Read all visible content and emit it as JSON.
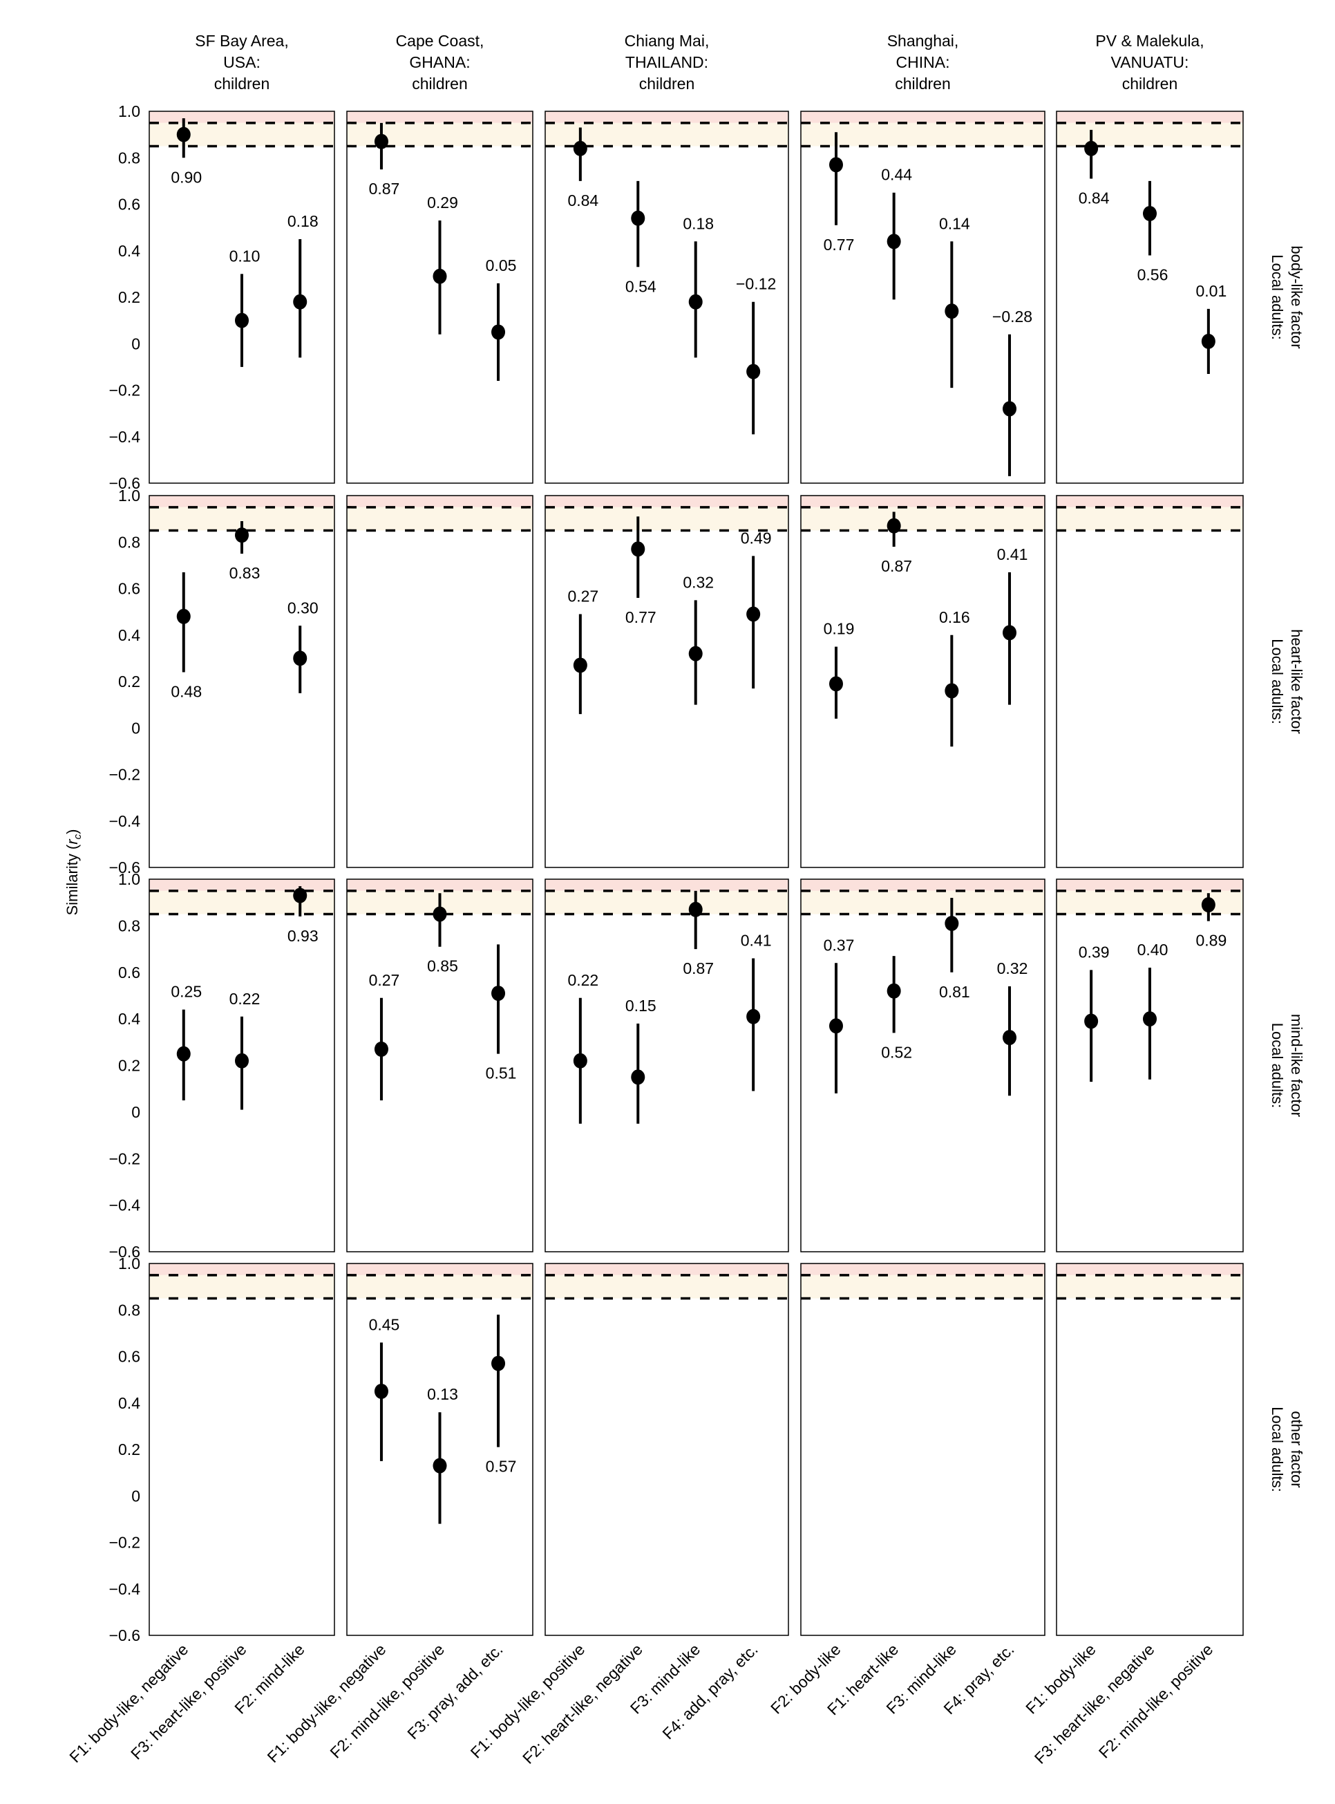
{
  "chart_data": {
    "type": "scatter",
    "subtype": "point-with-error-bars, faceted grid",
    "ylabel": "Similarity (r_c)",
    "ylim": [
      -0.6,
      1.0
    ],
    "yticks": [
      1.0,
      0.8,
      0.6,
      0.4,
      0.2,
      0,
      -0.2,
      -0.4,
      -0.6
    ],
    "ytick_labels": [
      "1.0",
      "0.8",
      "0.6",
      "0.4",
      "0.2",
      "0",
      "−0.2",
      "−0.4",
      "−0.6"
    ],
    "reference_lines": [
      0.95,
      0.85
    ],
    "bands": [
      {
        "from": 0.95,
        "to": 1.0,
        "color": "#fbe1dc"
      },
      {
        "from": 0.85,
        "to": 0.95,
        "color": "#fdf6e7"
      }
    ],
    "columns": [
      {
        "title": [
          "SF Bay Area,",
          "USA:",
          "children"
        ],
        "categories": [
          "F1: body-like, negative",
          "F3: heart-like, positive",
          "F2: mind-like"
        ]
      },
      {
        "title": [
          "Cape Coast,",
          "GHANA:",
          "children"
        ],
        "categories": [
          "F1: body-like, negative",
          "F2: mind-like, positive",
          "F3: pray, add, etc."
        ]
      },
      {
        "title": [
          "Chiang Mai,",
          "THAILAND:",
          "children"
        ],
        "categories": [
          "F1: body-like, positive",
          "F2: heart-like, negative",
          "F3: mind-like",
          "F4: add, pray, etc."
        ]
      },
      {
        "title": [
          "Shanghai,",
          "CHINA:",
          "children"
        ],
        "categories": [
          "F2: body-like",
          "F1: heart-like",
          "F3: mind-like",
          "F4: pray, etc."
        ]
      },
      {
        "title": [
          "PV & Malekula,",
          "VANUATU:",
          "children"
        ],
        "categories": [
          "F1: body-like",
          "F3: heart-like, negative",
          "F2: mind-like, positive"
        ]
      }
    ],
    "rows": [
      {
        "label": [
          "Local adults:",
          "body-like factor"
        ]
      },
      {
        "label": [
          "Local adults:",
          "heart-like factor"
        ]
      },
      {
        "label": [
          "Local adults:",
          "mind-like factor"
        ]
      },
      {
        "label": [
          "Local adults:",
          "other factor"
        ]
      }
    ],
    "points": [
      {
        "row": 0,
        "col": 0,
        "idx": 0,
        "value": 0.9,
        "lo": 0.8,
        "hi": 0.97,
        "label": "0.90",
        "label_pos": "below"
      },
      {
        "row": 0,
        "col": 0,
        "idx": 1,
        "value": 0.1,
        "lo": -0.1,
        "hi": 0.3,
        "label": "0.10",
        "label_pos": "above"
      },
      {
        "row": 0,
        "col": 0,
        "idx": 2,
        "value": 0.18,
        "lo": -0.06,
        "hi": 0.45,
        "label": "0.18",
        "label_pos": "above"
      },
      {
        "row": 0,
        "col": 1,
        "idx": 0,
        "value": 0.87,
        "lo": 0.75,
        "hi": 0.95,
        "label": "0.87",
        "label_pos": "below"
      },
      {
        "row": 0,
        "col": 1,
        "idx": 1,
        "value": 0.29,
        "lo": 0.04,
        "hi": 0.53,
        "label": "0.29",
        "label_pos": "above"
      },
      {
        "row": 0,
        "col": 1,
        "idx": 2,
        "value": 0.05,
        "lo": -0.16,
        "hi": 0.26,
        "label": "0.05",
        "label_pos": "above"
      },
      {
        "row": 0,
        "col": 2,
        "idx": 0,
        "value": 0.84,
        "lo": 0.7,
        "hi": 0.93,
        "label": "0.84",
        "label_pos": "below"
      },
      {
        "row": 0,
        "col": 2,
        "idx": 1,
        "value": 0.54,
        "lo": 0.33,
        "hi": 0.7,
        "label": "0.54",
        "label_pos": "below"
      },
      {
        "row": 0,
        "col": 2,
        "idx": 2,
        "value": 0.18,
        "lo": -0.06,
        "hi": 0.44,
        "label": "0.18",
        "label_pos": "above"
      },
      {
        "row": 0,
        "col": 2,
        "idx": 3,
        "value": -0.12,
        "lo": -0.39,
        "hi": 0.18,
        "label": "−0.12",
        "label_pos": "above"
      },
      {
        "row": 0,
        "col": 3,
        "idx": 0,
        "value": 0.77,
        "lo": 0.51,
        "hi": 0.91,
        "label": "0.77",
        "label_pos": "below"
      },
      {
        "row": 0,
        "col": 3,
        "idx": 1,
        "value": 0.44,
        "lo": 0.19,
        "hi": 0.65,
        "label": "0.44",
        "label_pos": "above"
      },
      {
        "row": 0,
        "col": 3,
        "idx": 2,
        "value": 0.14,
        "lo": -0.19,
        "hi": 0.44,
        "label": "0.14",
        "label_pos": "above"
      },
      {
        "row": 0,
        "col": 3,
        "idx": 3,
        "value": -0.28,
        "lo": -0.57,
        "hi": 0.04,
        "label": "−0.28",
        "label_pos": "above"
      },
      {
        "row": 0,
        "col": 4,
        "idx": 0,
        "value": 0.84,
        "lo": 0.71,
        "hi": 0.92,
        "label": "0.84",
        "label_pos": "below"
      },
      {
        "row": 0,
        "col": 4,
        "idx": 1,
        "value": 0.56,
        "lo": 0.38,
        "hi": 0.7,
        "label": "0.56",
        "label_pos": "below"
      },
      {
        "row": 0,
        "col": 4,
        "idx": 2,
        "value": 0.01,
        "lo": -0.13,
        "hi": 0.15,
        "label": "0.01",
        "label_pos": "above"
      },
      {
        "row": 1,
        "col": 0,
        "idx": 0,
        "value": 0.48,
        "lo": 0.24,
        "hi": 0.67,
        "label": "0.48",
        "label_pos": "below"
      },
      {
        "row": 1,
        "col": 0,
        "idx": 1,
        "value": 0.83,
        "lo": 0.75,
        "hi": 0.89,
        "label": "0.83",
        "label_pos": "below"
      },
      {
        "row": 1,
        "col": 0,
        "idx": 2,
        "value": 0.3,
        "lo": 0.15,
        "hi": 0.44,
        "label": "0.30",
        "label_pos": "above"
      },
      {
        "row": 1,
        "col": 2,
        "idx": 0,
        "value": 0.27,
        "lo": 0.06,
        "hi": 0.49,
        "label": "0.27",
        "label_pos": "above"
      },
      {
        "row": 1,
        "col": 2,
        "idx": 1,
        "value": 0.77,
        "lo": 0.56,
        "hi": 0.91,
        "label": "0.77",
        "label_pos": "below"
      },
      {
        "row": 1,
        "col": 2,
        "idx": 2,
        "value": 0.32,
        "lo": 0.1,
        "hi": 0.55,
        "label": "0.32",
        "label_pos": "above"
      },
      {
        "row": 1,
        "col": 2,
        "idx": 3,
        "value": 0.49,
        "lo": 0.17,
        "hi": 0.74,
        "label": "0.49",
        "label_pos": "above"
      },
      {
        "row": 1,
        "col": 3,
        "idx": 0,
        "value": 0.19,
        "lo": 0.04,
        "hi": 0.35,
        "label": "0.19",
        "label_pos": "above"
      },
      {
        "row": 1,
        "col": 3,
        "idx": 1,
        "value": 0.87,
        "lo": 0.78,
        "hi": 0.93,
        "label": "0.87",
        "label_pos": "below"
      },
      {
        "row": 1,
        "col": 3,
        "idx": 2,
        "value": 0.16,
        "lo": -0.08,
        "hi": 0.4,
        "label": "0.16",
        "label_pos": "above"
      },
      {
        "row": 1,
        "col": 3,
        "idx": 3,
        "value": 0.41,
        "lo": 0.1,
        "hi": 0.67,
        "label": "0.41",
        "label_pos": "above"
      },
      {
        "row": 2,
        "col": 0,
        "idx": 0,
        "value": 0.25,
        "lo": 0.05,
        "hi": 0.44,
        "label": "0.25",
        "label_pos": "above"
      },
      {
        "row": 2,
        "col": 0,
        "idx": 1,
        "value": 0.22,
        "lo": 0.01,
        "hi": 0.41,
        "label": "0.22",
        "label_pos": "above"
      },
      {
        "row": 2,
        "col": 0,
        "idx": 2,
        "value": 0.93,
        "lo": 0.84,
        "hi": 0.97,
        "label": "0.93",
        "label_pos": "below"
      },
      {
        "row": 2,
        "col": 1,
        "idx": 0,
        "value": 0.27,
        "lo": 0.05,
        "hi": 0.49,
        "label": "0.27",
        "label_pos": "above"
      },
      {
        "row": 2,
        "col": 1,
        "idx": 1,
        "value": 0.85,
        "lo": 0.71,
        "hi": 0.94,
        "label": "0.85",
        "label_pos": "below"
      },
      {
        "row": 2,
        "col": 1,
        "idx": 2,
        "value": 0.51,
        "lo": 0.25,
        "hi": 0.72,
        "label": "0.51",
        "label_pos": "below"
      },
      {
        "row": 2,
        "col": 2,
        "idx": 0,
        "value": 0.22,
        "lo": -0.05,
        "hi": 0.49,
        "label": "0.22",
        "label_pos": "above"
      },
      {
        "row": 2,
        "col": 2,
        "idx": 1,
        "value": 0.15,
        "lo": -0.05,
        "hi": 0.38,
        "label": "0.15",
        "label_pos": "above"
      },
      {
        "row": 2,
        "col": 2,
        "idx": 2,
        "value": 0.87,
        "lo": 0.7,
        "hi": 0.95,
        "label": "0.87",
        "label_pos": "below"
      },
      {
        "row": 2,
        "col": 2,
        "idx": 3,
        "value": 0.41,
        "lo": 0.09,
        "hi": 0.66,
        "label": "0.41",
        "label_pos": "above"
      },
      {
        "row": 2,
        "col": 3,
        "idx": 0,
        "value": 0.37,
        "lo": 0.08,
        "hi": 0.64,
        "label": "0.37",
        "label_pos": "above"
      },
      {
        "row": 2,
        "col": 3,
        "idx": 1,
        "value": 0.52,
        "lo": 0.34,
        "hi": 0.67,
        "label": "0.52",
        "label_pos": "below"
      },
      {
        "row": 2,
        "col": 3,
        "idx": 2,
        "value": 0.81,
        "lo": 0.6,
        "hi": 0.92,
        "label": "0.81",
        "label_pos": "below"
      },
      {
        "row": 2,
        "col": 3,
        "idx": 3,
        "value": 0.32,
        "lo": 0.07,
        "hi": 0.54,
        "label": "0.32",
        "label_pos": "above"
      },
      {
        "row": 2,
        "col": 4,
        "idx": 0,
        "value": 0.39,
        "lo": 0.13,
        "hi": 0.61,
        "label": "0.39",
        "label_pos": "above"
      },
      {
        "row": 2,
        "col": 4,
        "idx": 1,
        "value": 0.4,
        "lo": 0.14,
        "hi": 0.62,
        "label": "0.40",
        "label_pos": "above"
      },
      {
        "row": 2,
        "col": 4,
        "idx": 2,
        "value": 0.89,
        "lo": 0.82,
        "hi": 0.94,
        "label": "0.89",
        "label_pos": "below"
      },
      {
        "row": 3,
        "col": 1,
        "idx": 0,
        "value": 0.45,
        "lo": 0.15,
        "hi": 0.66,
        "label": "0.45",
        "label_pos": "above"
      },
      {
        "row": 3,
        "col": 1,
        "idx": 1,
        "value": 0.13,
        "lo": -0.12,
        "hi": 0.36,
        "label": "0.13",
        "label_pos": "above"
      },
      {
        "row": 3,
        "col": 1,
        "idx": 2,
        "value": 0.57,
        "lo": 0.21,
        "hi": 0.78,
        "label": "0.57",
        "label_pos": "below"
      }
    ]
  },
  "colors": {
    "band_high": "#fbe1dc",
    "band_mid": "#fdf6e7",
    "ink": "#000000",
    "background": "#ffffff"
  }
}
